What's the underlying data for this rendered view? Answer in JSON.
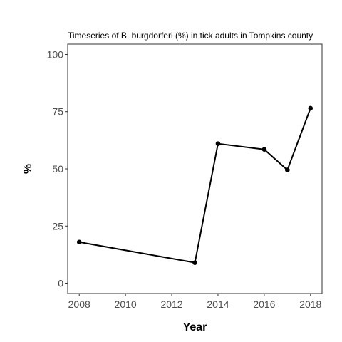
{
  "chart_data": {
    "type": "line",
    "title": "Timeseries of B. burgdorferi (%) in tick adults in Tompkins county",
    "xlabel": "Year",
    "ylabel": "%",
    "x": [
      2008,
      2013,
      2014,
      2016,
      2017,
      2018
    ],
    "series": [
      {
        "values": [
          18,
          9,
          61,
          58.5,
          49.5,
          76.5
        ]
      }
    ],
    "xlim": [
      2007.5,
      2018.5
    ],
    "ylim": [
      -4.5,
      104.5
    ],
    "xticks": [
      2008,
      2010,
      2012,
      2014,
      2016,
      2018
    ],
    "yticks": [
      0,
      25,
      50,
      75,
      100
    ],
    "grid": false,
    "legend": "none",
    "line_color": "#000000",
    "panel_border_color": "#333333"
  }
}
